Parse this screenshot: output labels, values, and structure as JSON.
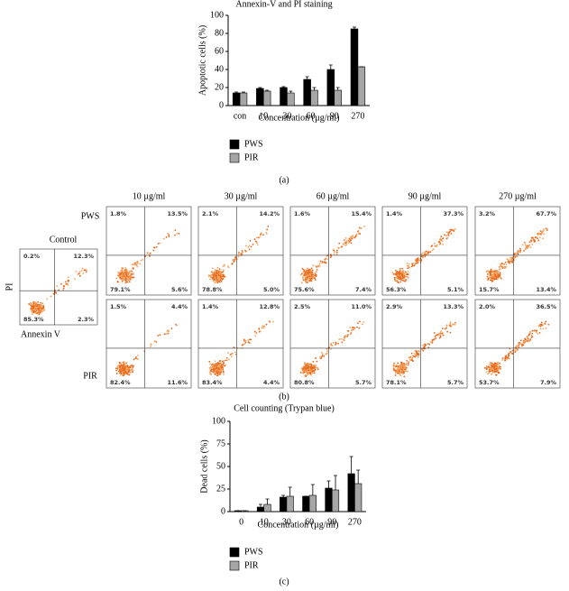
{
  "chart_data": [
    {
      "type": "bar",
      "title": "Annexin-V and PI staining",
      "x_label": "Concentration (µg/ml)",
      "y_label": "Apoptotic cells (%)",
      "categories": [
        "con",
        "10",
        "30",
        "60",
        "90",
        "270"
      ],
      "series": [
        {
          "name": "PWS",
          "color": "#000000",
          "values": [
            14,
            19,
            20,
            29,
            40,
            85
          ],
          "errors": [
            1,
            1,
            1,
            3,
            5,
            2
          ]
        },
        {
          "name": "PIR",
          "color": "#a6a6a6",
          "values": [
            14,
            16,
            14,
            17,
            17,
            43
          ],
          "errors": [
            1,
            1,
            2,
            3,
            3,
            0
          ]
        }
      ],
      "ylim": [
        0,
        100
      ],
      "yticks": [
        0,
        20,
        40,
        60,
        80,
        100
      ],
      "panel_label": "(a)"
    },
    {
      "type": "bar",
      "title": "Cell counting (Trypan blue)",
      "x_label": "Concentration (µg/ml)",
      "y_label": "Dead cells (%)",
      "categories": [
        "0",
        "10",
        "30",
        "60",
        "90",
        "270"
      ],
      "series": [
        {
          "name": "PWS",
          "color": "#000000",
          "values": [
            1,
            5,
            16,
            17,
            26,
            42
          ],
          "errors": [
            0,
            3,
            2,
            0,
            8,
            19
          ]
        },
        {
          "name": "PIR",
          "color": "#a6a6a6",
          "values": [
            1,
            8,
            17,
            18,
            24,
            31
          ],
          "errors": [
            0,
            6,
            10,
            12,
            16,
            15
          ]
        }
      ],
      "ylim": [
        0,
        100
      ],
      "yticks": [
        0,
        25,
        50,
        75,
        100
      ],
      "panel_label": "(c)"
    }
  ],
  "flow_cytometry": {
    "panel_label": "(b)",
    "x_label": "Annexin V",
    "y_label": "PI",
    "control": {
      "title": "Control",
      "quadrants": [
        "0.2%",
        "12.3%",
        "85.3%",
        "2.3%"
      ]
    },
    "columns": [
      "10 µg/ml",
      "30 µg/ml",
      "60 µg/ml",
      "90 µg/ml",
      "270 µg/ml"
    ],
    "rows": [
      {
        "label": "PWS",
        "panels": [
          [
            "1.8%",
            "13.5%",
            "79.1%",
            "5.6%"
          ],
          [
            "2.1%",
            "14.2%",
            "78.8%",
            "5.0%"
          ],
          [
            "1.6%",
            "15.4%",
            "75.6%",
            "7.4%"
          ],
          [
            "1.4%",
            "37.3%",
            "56.3%",
            "5.1%"
          ],
          [
            "3.2%",
            "67.7%",
            "15.7%",
            "13.4%"
          ]
        ]
      },
      {
        "label": "PIR",
        "panels": [
          [
            "1.5%",
            "4.4%",
            "82.4%",
            "11.6%"
          ],
          [
            "1.4%",
            "12.8%",
            "83.4%",
            "4.4%"
          ],
          [
            "2.5%",
            "11.0%",
            "80.8%",
            "5.7%"
          ],
          [
            "2.9%",
            "13.3%",
            "78.1%",
            "5.7%"
          ],
          [
            "2.0%",
            "36.5%",
            "53.7%",
            "7.9%"
          ]
        ]
      }
    ]
  }
}
